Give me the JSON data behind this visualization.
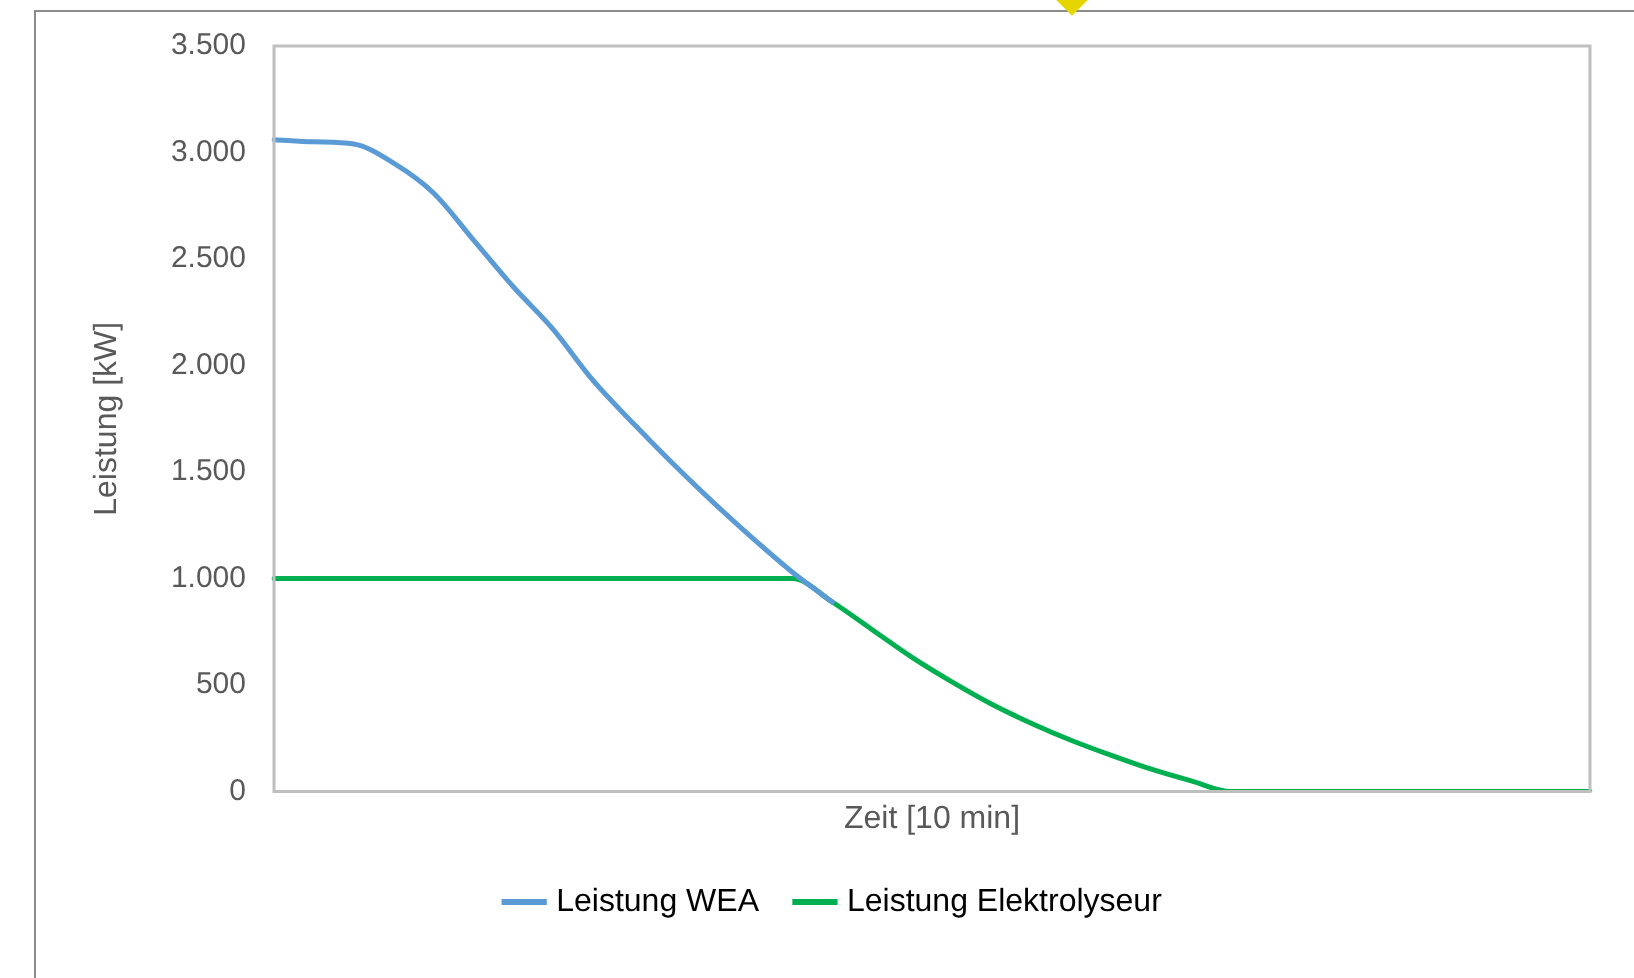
{
  "chart_data": {
    "type": "line",
    "xlabel": "Zeit [10 min]",
    "ylabel": "Leistung [kW]",
    "categories": [
      null,
      null,
      null,
      null,
      null,
      null,
      null,
      null,
      null,
      null,
      null,
      null,
      null,
      null,
      null,
      null,
      null,
      null,
      null,
      null,
      null,
      null,
      null,
      null,
      null,
      null,
      null,
      null,
      null,
      null,
      null,
      null,
      null,
      null
    ],
    "series": [
      {
        "name": "Leistung WEA",
        "color": "#5b9bd5",
        "values": [
          3060,
          3050,
          3040,
          2950,
          2810,
          2590,
          2370,
          2170,
          1930,
          1730,
          1540,
          1360,
          1190,
          1030,
          890,
          null,
          null,
          null,
          null,
          null,
          null,
          null,
          null,
          null,
          null,
          null,
          null,
          null,
          null,
          null,
          null,
          null,
          null,
          null
        ]
      },
      {
        "name": "Leistung Elektrolyseur",
        "color": "#00b050",
        "values": [
          1000,
          1000,
          1000,
          1000,
          1000,
          1000,
          1000,
          1000,
          1000,
          1000,
          1000,
          1000,
          1000,
          1000,
          890,
          760,
          630,
          515,
          410,
          320,
          240,
          170,
          105,
          50,
          0,
          0,
          0,
          0,
          0,
          0,
          0,
          0,
          0,
          0
        ]
      }
    ],
    "ylim": [
      0,
      3500
    ],
    "yticks": [
      0,
      500,
      {
        "value": 1000,
        "label": "1.000"
      },
      {
        "value": 1500,
        "label": "1.500"
      },
      {
        "value": 2000,
        "label": "2.000"
      },
      {
        "value": 2500,
        "label": "2.500"
      },
      {
        "value": 3000,
        "label": "3.000"
      },
      {
        "value": 3500,
        "label": "3.500"
      }
    ],
    "legend": "bottom",
    "tick_labels": "y",
    "marker": "none",
    "line_style": "solid"
  }
}
